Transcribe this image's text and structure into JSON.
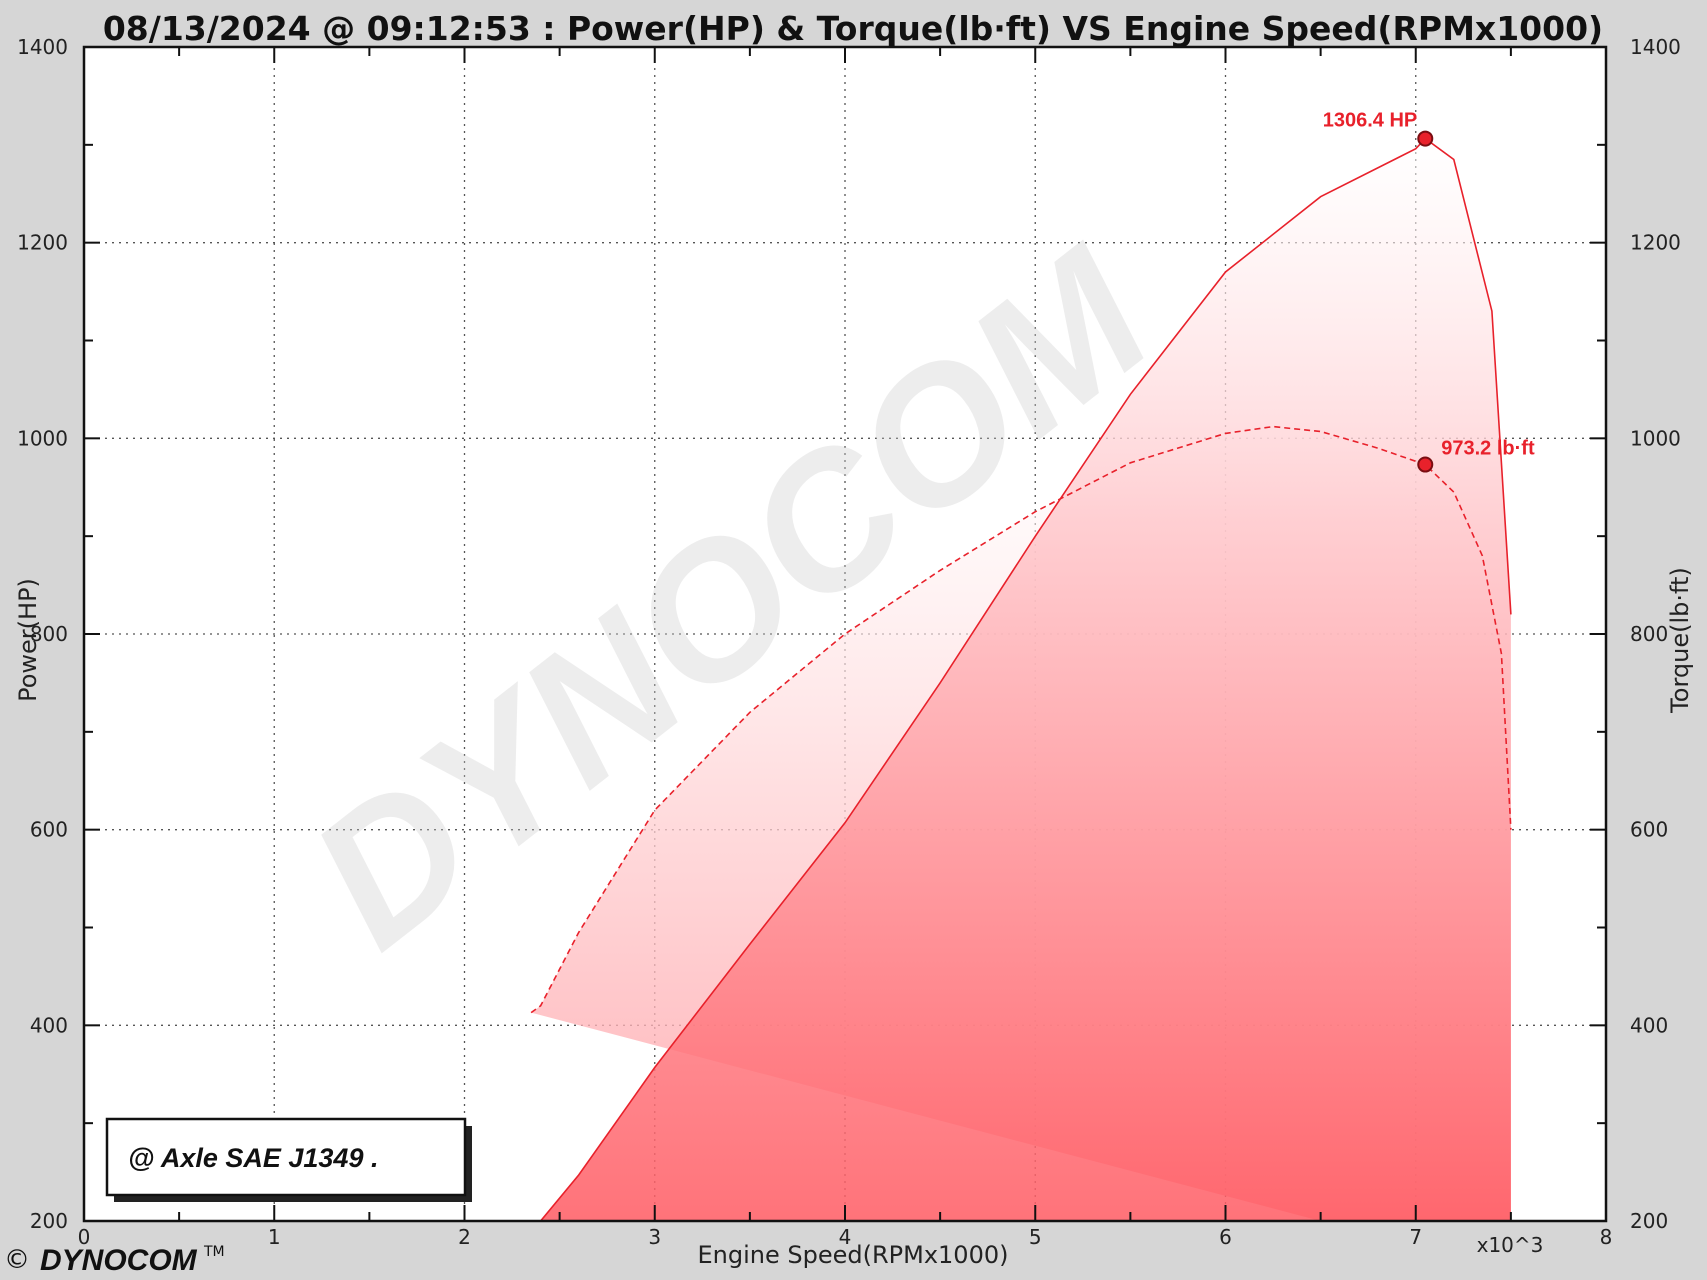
{
  "chart_data": {
    "type": "line",
    "title": "08/13/2024 @ 09:12:53 : Power(HP) & Torque(lb·ft) VS Engine Speed(RPMx1000)",
    "xlabel": "Engine Speed(RPMx1000)",
    "x_unit_note": "x10^3",
    "ylabel_left": "Power(HP)",
    "ylabel_right": "Torque(lb·ft)",
    "xlim": [
      0,
      8
    ],
    "ylim": [
      200,
      1400
    ],
    "x_ticks": [
      "0",
      "1",
      "2",
      "3",
      "4",
      "5",
      "6",
      "7",
      "8"
    ],
    "y_ticks": [
      "200",
      "400",
      "600",
      "800",
      "1000",
      "1200",
      "1400"
    ],
    "grid": true,
    "series": [
      {
        "name": "Power",
        "unit": "HP",
        "style": "solid",
        "x": [
          2.4,
          2.6,
          3.0,
          3.5,
          4.0,
          4.5,
          5.0,
          5.5,
          6.0,
          6.5,
          7.0,
          7.05,
          7.2,
          7.4,
          7.5
        ],
        "y": [
          200,
          247,
          357,
          483,
          607,
          750,
          900,
          1045,
          1170,
          1247,
          1296,
          1306.4,
          1285,
          1130,
          820
        ]
      },
      {
        "name": "Torque",
        "unit": "lb·ft",
        "style": "dashed",
        "x": [
          2.35,
          2.4,
          2.6,
          3.0,
          3.5,
          4.0,
          4.5,
          5.0,
          5.5,
          6.0,
          6.25,
          6.5,
          6.8,
          7.05,
          7.2,
          7.35,
          7.45,
          7.5
        ],
        "y": [
          413,
          420,
          495,
          620,
          720,
          800,
          865,
          925,
          975,
          1005,
          1012,
          1007,
          990,
          973.2,
          945,
          880,
          780,
          600
        ]
      }
    ],
    "annotations": [
      {
        "series": "Power",
        "x": 7.05,
        "y": 1306.4,
        "text": "1306.4 HP"
      },
      {
        "series": "Torque",
        "x": 7.05,
        "y": 973.2,
        "text": "973.2 lb·ft"
      }
    ]
  },
  "badge_text": "@ Axle SAE J1349  .",
  "watermark_text": "DYNOCOM",
  "footer": {
    "copyright": "©",
    "logo": "DYNOCOM",
    "trademark": "TM"
  },
  "colors": {
    "accent": "#e8212b",
    "plot_bg": "#ffffff",
    "frame_bg": "#d6d6d6"
  }
}
